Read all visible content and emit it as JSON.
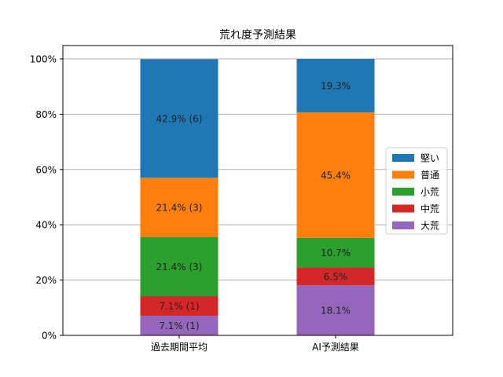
{
  "chart_data": {
    "type": "bar",
    "stacked": true,
    "title": "荒れ度予測結果",
    "xlabel": "",
    "ylabel": "",
    "categories": [
      "過去期間平均",
      "AI予測結果"
    ],
    "ylim": [
      0,
      100
    ],
    "yticks": [
      0,
      20,
      40,
      60,
      80,
      100
    ],
    "ytick_labels": [
      "0%",
      "20%",
      "40%",
      "60%",
      "80%",
      "100%"
    ],
    "grid": "horizontal",
    "legend_position": "center-right",
    "series": [
      {
        "name": "大荒",
        "color": "#9467bd",
        "values": [
          7.1,
          18.1
        ],
        "labels": [
          "7.1% (1)",
          "18.1%"
        ]
      },
      {
        "name": "中荒",
        "color": "#d62728",
        "values": [
          7.1,
          6.5
        ],
        "labels": [
          "7.1% (1)",
          "6.5%"
        ]
      },
      {
        "name": "小荒",
        "color": "#2ca02c",
        "values": [
          21.4,
          10.7
        ],
        "labels": [
          "21.4% (3)",
          "10.7%"
        ]
      },
      {
        "name": "普通",
        "color": "#ff7f0e",
        "values": [
          21.4,
          45.4
        ],
        "labels": [
          "21.4% (3)",
          "45.4%"
        ]
      },
      {
        "name": "堅い",
        "color": "#1f77b4",
        "values": [
          42.9,
          19.3
        ],
        "labels": [
          "42.9% (6)",
          "19.3%"
        ]
      }
    ]
  }
}
